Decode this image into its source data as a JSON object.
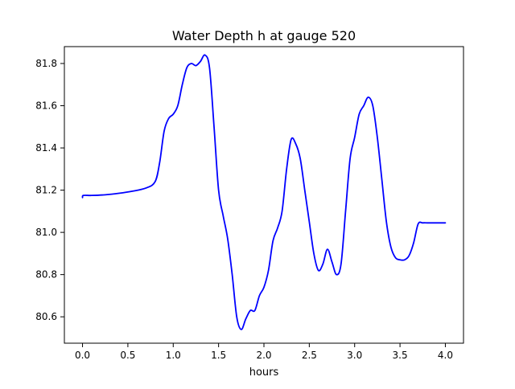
{
  "chart_data": {
    "type": "line",
    "title": "Water Depth h at gauge 520",
    "xlabel": "hours",
    "ylabel": "",
    "xlim": [
      -0.2,
      4.2
    ],
    "ylim": [
      80.475,
      81.88
    ],
    "xticks": [
      0.0,
      0.5,
      1.0,
      1.5,
      2.0,
      2.5,
      3.0,
      3.5,
      4.0
    ],
    "xtick_labels": [
      "0.0",
      "0.5",
      "1.0",
      "1.5",
      "2.0",
      "2.5",
      "3.0",
      "3.5",
      "4.0"
    ],
    "yticks": [
      80.6,
      80.8,
      81.0,
      81.2,
      81.4,
      81.6,
      81.8
    ],
    "ytick_labels": [
      "80.6",
      "80.8",
      "81.0",
      "81.2",
      "81.4",
      "81.6",
      "81.8"
    ],
    "grid": false,
    "legend": "none",
    "series": [
      {
        "color": "#0000ff",
        "x": [
          0.0,
          0.01,
          0.1,
          0.25,
          0.4,
          0.55,
          0.7,
          0.8,
          0.85,
          0.9,
          0.95,
          1.0,
          1.05,
          1.1,
          1.15,
          1.2,
          1.25,
          1.3,
          1.35,
          1.4,
          1.45,
          1.5,
          1.55,
          1.6,
          1.65,
          1.7,
          1.75,
          1.8,
          1.85,
          1.9,
          1.95,
          2.0,
          2.05,
          2.1,
          2.15,
          2.2,
          2.25,
          2.3,
          2.35,
          2.4,
          2.45,
          2.5,
          2.55,
          2.6,
          2.65,
          2.7,
          2.75,
          2.8,
          2.85,
          2.9,
          2.95,
          3.0,
          3.05,
          3.1,
          3.15,
          3.2,
          3.25,
          3.3,
          3.35,
          3.4,
          3.45,
          3.5,
          3.55,
          3.6,
          3.65,
          3.7,
          3.75,
          3.8,
          3.85,
          3.9,
          3.95,
          4.0
        ],
        "y": [
          81.165,
          81.175,
          81.175,
          81.178,
          81.185,
          81.195,
          81.21,
          81.24,
          81.33,
          81.48,
          81.54,
          81.56,
          81.6,
          81.7,
          81.78,
          81.8,
          81.79,
          81.81,
          81.84,
          81.78,
          81.5,
          81.2,
          81.08,
          80.97,
          80.8,
          80.6,
          80.54,
          80.59,
          80.63,
          80.63,
          80.7,
          80.74,
          80.82,
          80.96,
          81.02,
          81.1,
          81.3,
          81.44,
          81.42,
          81.35,
          81.2,
          81.05,
          80.9,
          80.82,
          80.85,
          80.92,
          80.86,
          80.8,
          80.85,
          81.1,
          81.35,
          81.45,
          81.56,
          81.6,
          81.64,
          81.6,
          81.45,
          81.25,
          81.05,
          80.93,
          80.88,
          80.87,
          80.87,
          80.89,
          80.95,
          81.04,
          81.045,
          81.045,
          81.045,
          81.045,
          81.045,
          81.045
        ]
      }
    ]
  }
}
